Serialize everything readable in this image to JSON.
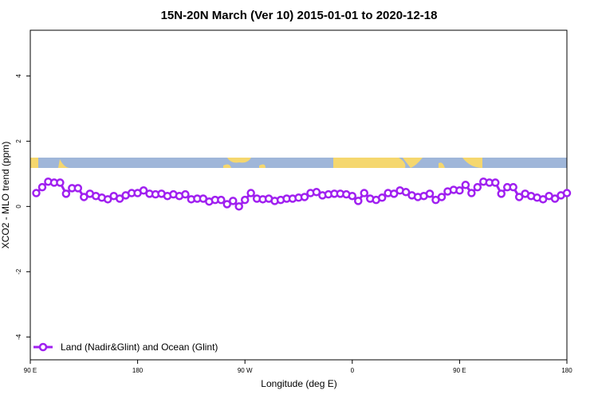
{
  "chart_data": {
    "type": "line",
    "title": "15N-20N March (Ver 10)   2015-01-01 to 2020-12-18",
    "x_label": "Longitude (deg E)",
    "y_label": "XCO2 - MLO trend (ppm)",
    "x": [
      95,
      100,
      105,
      110,
      115,
      120,
      125,
      130,
      135,
      140,
      145,
      150,
      155,
      160,
      165,
      170,
      175,
      180,
      185,
      190,
      195,
      200,
      205,
      210,
      215,
      220,
      225,
      230,
      235,
      240,
      245,
      250,
      255,
      260,
      265,
      270,
      275,
      280,
      285,
      290,
      295,
      300,
      305,
      310,
      315,
      320,
      325,
      330,
      335,
      340,
      345,
      350,
      355,
      360,
      365,
      370,
      375,
      380,
      385,
      390,
      395,
      400,
      405,
      410,
      415,
      420,
      425,
      430,
      435,
      440,
      445,
      450,
      455,
      460,
      465,
      470,
      475,
      480,
      485,
      490,
      495,
      500,
      505,
      510,
      515,
      520,
      525,
      530,
      535,
      540
    ],
    "series": [
      {
        "name": "Land (Nadir&Glint) and Ocean (Glint)",
        "color": "#a020f0",
        "values": [
          0.41,
          0.59,
          0.76,
          0.73,
          0.73,
          0.39,
          0.56,
          0.56,
          0.29,
          0.39,
          0.32,
          0.27,
          0.22,
          0.32,
          0.24,
          0.34,
          0.41,
          0.41,
          0.49,
          0.39,
          0.37,
          0.39,
          0.32,
          0.37,
          0.32,
          0.37,
          0.22,
          0.24,
          0.24,
          0.15,
          0.2,
          0.2,
          0.07,
          0.17,
          0.0,
          0.2,
          0.41,
          0.24,
          0.22,
          0.24,
          0.17,
          0.2,
          0.24,
          0.24,
          0.27,
          0.29,
          0.41,
          0.44,
          0.34,
          0.37,
          0.39,
          0.39,
          0.37,
          0.32,
          0.17,
          0.41,
          0.24,
          0.2,
          0.27,
          0.41,
          0.39,
          0.49,
          0.44,
          0.34,
          0.29,
          0.32,
          0.39,
          0.2,
          0.29,
          0.46,
          0.51,
          0.49,
          0.66,
          0.41,
          0.59,
          0.76,
          0.73,
          0.73,
          0.39,
          0.59,
          0.59,
          0.29,
          0.39,
          0.32,
          0.27,
          0.22,
          0.32,
          0.24,
          0.34,
          0.41
        ]
      }
    ],
    "xlim": [
      90,
      540
    ],
    "xticks": [
      {
        "value": 90,
        "label": "90 E"
      },
      {
        "value": 180,
        "label": "180"
      },
      {
        "value": 270,
        "label": "90 W"
      },
      {
        "value": 360,
        "label": "0"
      },
      {
        "value": 450,
        "label": "90 E"
      },
      {
        "value": 540,
        "label": "180"
      }
    ],
    "ylim": [
      -4.7,
      5.4
    ],
    "yticks": [
      -4,
      -2,
      0,
      2,
      4
    ],
    "legend": "bottomleft"
  }
}
